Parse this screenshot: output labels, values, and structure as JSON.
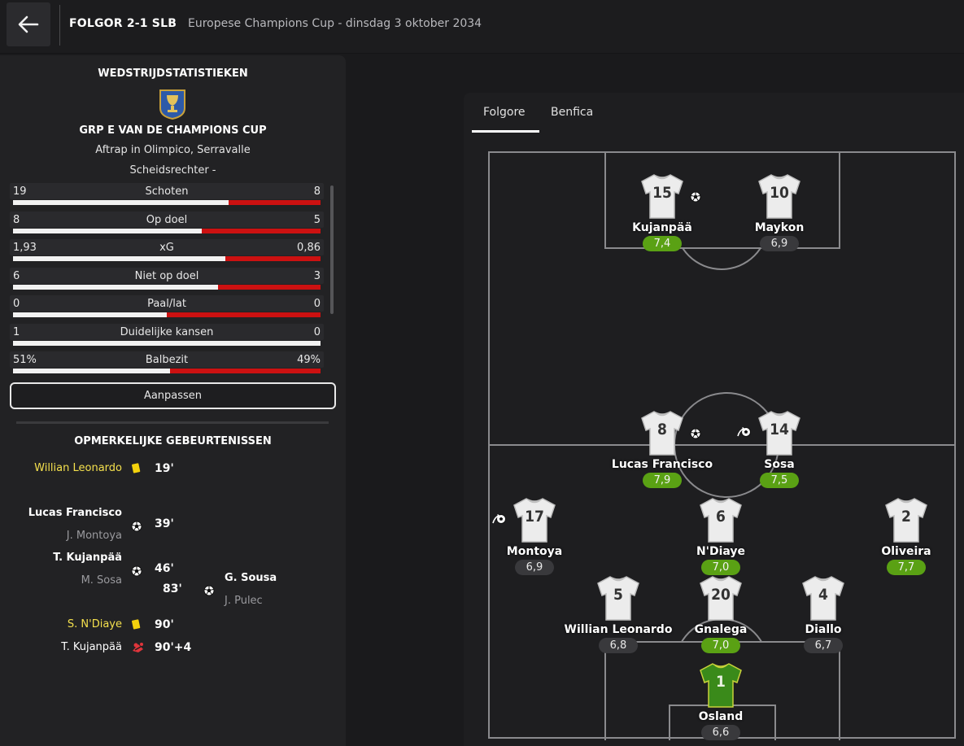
{
  "header": {
    "score": "FOLGOR 2-1 SLB",
    "subtitle": "Europese Champions Cup - dinsdag 3 oktober 2034"
  },
  "stats_panel": {
    "title": "WEDSTRIJDSTATISTIEKEN",
    "competition": "GRP E VAN DE CHAMPIONS CUP",
    "venue": "Aftrap in Olimpico, Serravalle",
    "referee": "Scheidsrechter -",
    "stats": [
      {
        "label": "Schoten",
        "home": "19",
        "away": "8",
        "home_share": 0.7
      },
      {
        "label": "Op doel",
        "home": "8",
        "away": "5",
        "home_share": 0.615
      },
      {
        "label": "xG",
        "home": "1,93",
        "away": "0,86",
        "home_share": 0.69
      },
      {
        "label": "Niet op doel",
        "home": "6",
        "away": "3",
        "home_share": 0.667
      },
      {
        "label": "Paal/lat",
        "home": "0",
        "away": "0",
        "home_share": 0.5
      },
      {
        "label": "Duidelijke kansen",
        "home": "1",
        "away": "0",
        "home_share": 1.0
      },
      {
        "label": "Balbezit",
        "home": "51%",
        "away": "49%",
        "home_share": 0.51
      }
    ],
    "customize_label": "Aanpassen"
  },
  "events": {
    "title": "OPMERKELIJKE GEBEURTENISSEN",
    "items": [
      {
        "side": "home",
        "type": "yellow-card",
        "player": "Willian Leonardo",
        "assist": "",
        "minute": "19'"
      },
      {
        "side": "home",
        "type": "goal",
        "player": "Lucas Francisco",
        "assist": "J. Montoya",
        "minute": "39'"
      },
      {
        "side": "home",
        "type": "goal",
        "player": "T. Kujanpää",
        "assist": "M. Sosa",
        "minute": "46'"
      },
      {
        "side": "away",
        "type": "goal",
        "player": "G. Sousa",
        "assist": "J. Pulec",
        "minute": "83'"
      },
      {
        "side": "home",
        "type": "yellow-card",
        "player": "S. N'Diaye",
        "assist": "",
        "minute": "90'"
      },
      {
        "side": "home",
        "type": "injury",
        "player": "T. Kujanpää",
        "assist": "",
        "minute": "90'+4"
      }
    ]
  },
  "lineup": {
    "tabs": [
      "Folgore",
      "Benfica"
    ],
    "active_tab": "Folgore",
    "players": [
      {
        "number": "15",
        "name": "Kujanpää",
        "rating": "7,4",
        "good": true,
        "icon": "goal"
      },
      {
        "number": "10",
        "name": "Maykon",
        "rating": "6,9",
        "good": false,
        "icon": ""
      },
      {
        "number": "8",
        "name": "Lucas Francisco",
        "rating": "7,9",
        "good": true,
        "icon": "goal"
      },
      {
        "number": "14",
        "name": "Sosa",
        "rating": "7,5",
        "good": true,
        "icon": "assist"
      },
      {
        "number": "17",
        "name": "Montoya",
        "rating": "6,9",
        "good": false,
        "icon": "assist"
      },
      {
        "number": "6",
        "name": "N'Diaye",
        "rating": "7,0",
        "good": true,
        "icon": ""
      },
      {
        "number": "2",
        "name": "Oliveira",
        "rating": "7,7",
        "good": true,
        "icon": ""
      },
      {
        "number": "5",
        "name": "Willian Leonardo",
        "rating": "6,8",
        "good": false,
        "icon": ""
      },
      {
        "number": "20",
        "name": "Gnalega",
        "rating": "7,0",
        "good": true,
        "icon": ""
      },
      {
        "number": "4",
        "name": "Diallo",
        "rating": "6,7",
        "good": false,
        "icon": ""
      },
      {
        "number": "1",
        "name": "Osland",
        "rating": "6,6",
        "good": false,
        "icon": "",
        "goalkeeper": true
      }
    ]
  },
  "colors": {
    "rating_good": "#5aa114",
    "away_bar": "#cc1111",
    "yellow_card": "#f4e04d",
    "goalkeeper_shirt": "#3a8a1a"
  }
}
